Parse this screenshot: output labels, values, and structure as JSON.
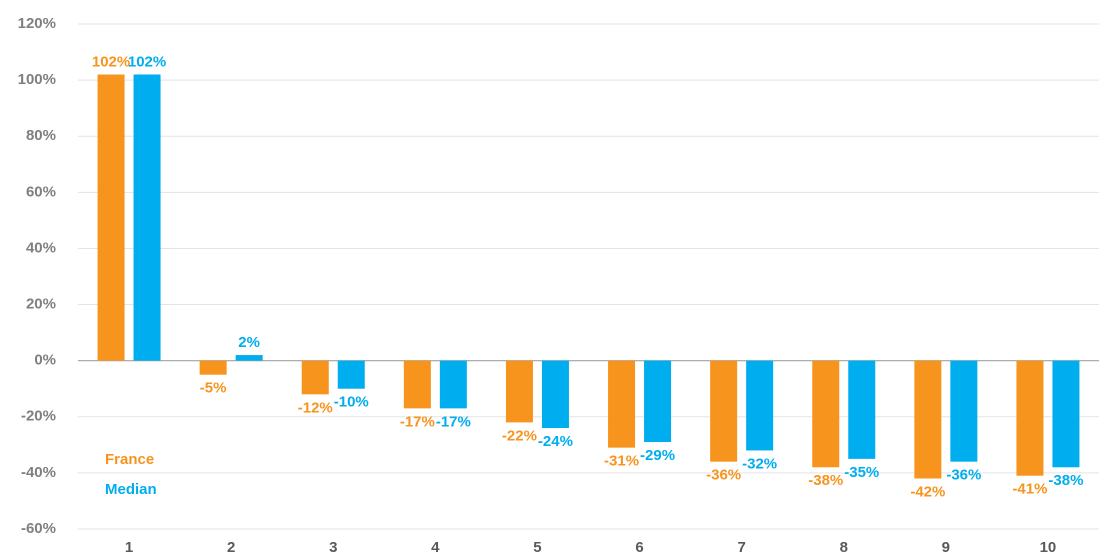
{
  "chart_data": {
    "type": "bar",
    "categories": [
      "1",
      "2",
      "3",
      "4",
      "5",
      "6",
      "7",
      "8",
      "9",
      "10"
    ],
    "series": [
      {
        "name": "France",
        "color": "#f7941d",
        "values": [
          102,
          -5,
          -12,
          -17,
          -22,
          -31,
          -36,
          -38,
          -42,
          -41
        ],
        "value_labels": [
          "102%",
          "-5%",
          "-12%",
          "-17%",
          "-22%",
          "-31%",
          "-36%",
          "-38%",
          "-42%",
          "-41%"
        ]
      },
      {
        "name": "Median",
        "color": "#00aeef",
        "values": [
          102,
          2,
          -10,
          -17,
          -24,
          -29,
          -32,
          -35,
          -36,
          -38
        ],
        "value_labels": [
          "102%",
          "2%",
          "-10%",
          "-17%",
          "-24%",
          "-29%",
          "-32%",
          "-35%",
          "-36%",
          "-38%"
        ]
      }
    ],
    "ylim": [
      -60,
      120
    ],
    "yticks": [
      {
        "value": -60,
        "label": "-60%"
      },
      {
        "value": -40,
        "label": "-40%"
      },
      {
        "value": -20,
        "label": "-20%"
      },
      {
        "value": 0,
        "label": "0%"
      },
      {
        "value": 20,
        "label": "20%"
      },
      {
        "value": 40,
        "label": "40%"
      },
      {
        "value": 60,
        "label": "60%"
      },
      {
        "value": 80,
        "label": "80%"
      },
      {
        "value": 100,
        "label": "100%"
      },
      {
        "value": 120,
        "label": "120%"
      }
    ],
    "grid": true,
    "legend": "lower left"
  }
}
